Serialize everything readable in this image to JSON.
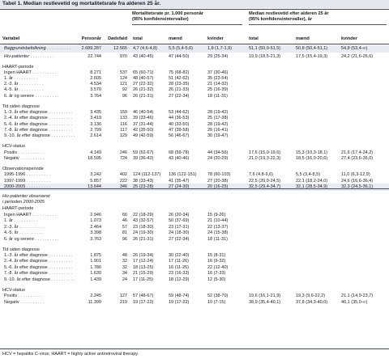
{
  "title": "Tabel 1.  Median restlevetid og mortalitetsrate fra alderen 25 år.",
  "groups": {
    "mortality": [
      "Mortalitetsrate pr. 1.000 personår",
      "(95% konfidensintervaller)"
    ],
    "median": [
      "Median restlevetid efter alderen 25 år",
      "(95% konfidensintervaller), år"
    ]
  },
  "columns": [
    "Variabel",
    "Personår",
    "Dødsfald",
    "total",
    "mænd",
    "kvinder",
    "total",
    "mænd",
    "kvinder"
  ],
  "rows": [
    {
      "label": "Baggrundsbefolkning",
      "italic": true,
      "dots": true,
      "band": true,
      "values": [
        "2.689.287",
        "12.565",
        "4,7 (4,6-4,8)",
        "5,5 (5,4-5,6)",
        "1,8 (1,7-1,9)",
        "51,1 (50,9-51,5)",
        "50,8 (50,4-51,1)",
        "54,8 (53,4-∞)"
      ]
    },
    {
      "label": "Hiv-patienter",
      "italic": true,
      "dots": true,
      "values": [
        "22.744",
        "970",
        "43 (40-45)",
        "47 (44-50)",
        "29 (25-34)",
        "19,9 (18,5-21,3)",
        "17,5 (15,4-19,3)",
        "24,2 (21,6-26,6)"
      ]
    },
    {
      "label": "HAART-periode",
      "header": true
    },
    {
      "label": "Ingen HAART",
      "dots": true,
      "values": [
        "8.271",
        "537",
        "65 (60-71)",
        "75 (68-82)",
        "37 (30-46)",
        "",
        "",
        ""
      ]
    },
    {
      "label": "1. år",
      "dots": true,
      "values": [
        "2.605",
        "124",
        "48 (40-57)",
        "51 (42-62)",
        "35 (23-54)",
        "",
        "",
        ""
      ]
    },
    {
      "label": "2.-3. år",
      "dots": true,
      "values": [
        "4.534",
        "121",
        "27 (22-32)",
        "28 (23-35)",
        "21 (14-32)",
        "",
        "",
        ""
      ]
    },
    {
      "label": "4.-5. år",
      "dots": true,
      "values": [
        "3.570",
        "92",
        "26 (21-32)",
        "26 (21-33)",
        "25 (16-39)",
        "",
        "",
        ""
      ]
    },
    {
      "label": "6. år og senere",
      "dots": true,
      "values": [
        "3.764",
        "96",
        "26 (21-31)",
        "27 (22-34)",
        "18 (11-31)",
        "",
        "",
        ""
      ]
    },
    {
      "label": "Tid siden diagnose",
      "header": true
    },
    {
      "label": "1.-3. år efter diagnose",
      "dots": true,
      "values": [
        "3.435",
        "159",
        "46 (40-54)",
        "53 (44-62)",
        "28 (19-42)",
        "",
        "",
        ""
      ]
    },
    {
      "label": "2.-4. år efter diagnose",
      "dots": true,
      "values": [
        "3.419",
        "133",
        "39 (33-46)",
        "44 (36-53)",
        "25 (17-38)",
        "",
        "",
        ""
      ]
    },
    {
      "label": "5.-6. år efter diagnose",
      "dots": true,
      "values": [
        "3.136",
        "116",
        "37 (31-44)",
        "40 (33-50)",
        "28 (19-42)",
        "",
        "",
        ""
      ]
    },
    {
      "label": "7.-8. år efter diagnose",
      "dots": true,
      "values": [
        "2.799",
        "117",
        "42 (35-50)",
        "47 (39-58)",
        "26 (16-41)",
        "",
        "",
        ""
      ]
    },
    {
      "label": "9.-10. år efter diagnose",
      "dots": true,
      "values": [
        "2.614",
        "129",
        "49 (42-59)",
        "56 (46-67)",
        "30 (19-47)",
        "",
        "",
        ""
      ]
    },
    {
      "label": "HCV-status",
      "header": true
    },
    {
      "label": "Positiv",
      "dots": true,
      "values": [
        "4.149",
        "246",
        "59 (52-67)",
        "68 (59-78)",
        "44 (34-56)",
        "17,6 (15,0-19,6)",
        "15,3 (10,3-18,1)",
        "21,6 (17,4-24,2)"
      ]
    },
    {
      "label": "Negativ",
      "dots": true,
      "values": [
        "18.595",
        "724",
        "39 (36-42)",
        "43 (40-46)",
        "24 (20-29)",
        "21,0 (19,3-22,3)",
        "18,5 (16,0-20,6)",
        "27,4 (23,6-35,0)"
      ]
    },
    {
      "label": "Observationsperiode",
      "header": true
    },
    {
      "label": "1995-1996",
      "dots": true,
      "values": [
        "3.242",
        "402",
        "124 (112-137)",
        "136 (122-151)",
        "78 (60-103)",
        "7,6 (4,8-9,6)",
        "5,5 (3,4-8,5)",
        "11,0 (6,3-12,9)"
      ]
    },
    {
      "label": "1997-1999",
      "dots": true,
      "values": [
        "5.857",
        "222",
        "38 (33-43)",
        "41 (35-47)",
        "27 (20-38)",
        "22,5 (20,0-24,5)",
        "22,1 (18,2-24,0)",
        "24,6 (16,6-36,4)"
      ]
    },
    {
      "label": "2000-2005",
      "dots": true,
      "band": true,
      "values": [
        "13.644",
        "346",
        "25 (23-28)",
        "27 (24-30)",
        "20 (16-25)",
        "32,5 (29,4-34,7)",
        "32,1 (28,5-34,9)",
        "32,3 (24,5-36,1)"
      ]
    },
    {
      "label": "Hiv-patienter observeret",
      "italic": true,
      "header": true
    },
    {
      "label": "i perioden 2000-2005",
      "italic": true,
      "header": true
    },
    {
      "label": "HAART-periode",
      "header": true
    },
    {
      "label": "Ingen HAART",
      "dots": true,
      "values": [
        "2.946",
        "66",
        "22 (18-29)",
        "26 (20-34)",
        "15 (9-26)",
        "",
        "",
        ""
      ]
    },
    {
      "label": "1. år",
      "dots": true,
      "values": [
        "1.073",
        "46",
        "43 (32-57)",
        "50 (37-69)",
        "21 (10-44)",
        "",
        "",
        ""
      ]
    },
    {
      "label": "2.-3. år",
      "dots": true,
      "values": [
        "2.464",
        "57",
        "23 (18-30)",
        "23 (17-31)",
        "22 (13-37)",
        "",
        "",
        ""
      ]
    },
    {
      "label": "4.-5. år",
      "dots": true,
      "values": [
        "3.398",
        "81",
        "24 (19-30)",
        "24 (18-30)",
        "24 (15-38)",
        "",
        "",
        ""
      ]
    },
    {
      "label": "6. år og senere",
      "dots": true,
      "values": [
        "3.763",
        "96",
        "26 (21-31)",
        "27 (22-34)",
        "18 (11-31)",
        "",
        "",
        ""
      ]
    },
    {
      "label": "Tid siden diagnose",
      "header": true
    },
    {
      "label": "1.-3. år efter diagnose",
      "dots": true,
      "values": [
        "1.875",
        "48",
        "26 (19-34)",
        "30 (22-40)",
        "15 (8-31)",
        "",
        "",
        ""
      ]
    },
    {
      "label": "2.-4. år efter diagnose",
      "dots": true,
      "values": [
        "1.901",
        "32",
        "17 (12-24)",
        "17 (11-26)",
        "16 (9-32)",
        "",
        "",
        ""
      ]
    },
    {
      "label": "5.-6. år efter diagnose",
      "dots": true,
      "values": [
        "1.786",
        "32",
        "18 (13-25)",
        "16 (11-25)",
        "22 (12-40)",
        "",
        "",
        ""
      ]
    },
    {
      "label": "7.-8. år efter diagnose",
      "dots": true,
      "values": [
        "1.630",
        "34",
        "21 (15-29)",
        "23 (16-33)",
        "16 (7-33)",
        "",
        "",
        ""
      ]
    },
    {
      "label": "9.-10. år efter diagnose",
      "dots": true,
      "values": [
        "1.439",
        "24",
        "17 (11-25)",
        "18 (12-29)",
        "12 (5-30)",
        "",
        "",
        ""
      ]
    },
    {
      "label": "HCV-status",
      "header": true
    },
    {
      "label": "Positiv",
      "dots": true,
      "values": [
        "2.245",
        "127",
        "57 (48-67)",
        "59 (48-74)",
        "52 (38-70)",
        "19,6 (16,1-21,9)",
        "19,3 (9,6-22,2)",
        "21,1 (14,9-23,7)"
      ]
    },
    {
      "label": "Negativ",
      "dots": true,
      "values": [
        "11.399",
        "219",
        "19 (17-22)",
        "19 (17-22)",
        "10 (7-15)",
        "38,9 (35,4-40,1)",
        "37,8 (34,3-40,0)",
        "40,1 (35,0-∞)"
      ]
    }
  ],
  "footnote": "HCV = hepatitis C-virus; HAART = highly active antiretroviral therapy.",
  "colors": {
    "band": "#e8ebf0",
    "title_band": "#e4e8ee",
    "rule": "#3e4b5c"
  }
}
